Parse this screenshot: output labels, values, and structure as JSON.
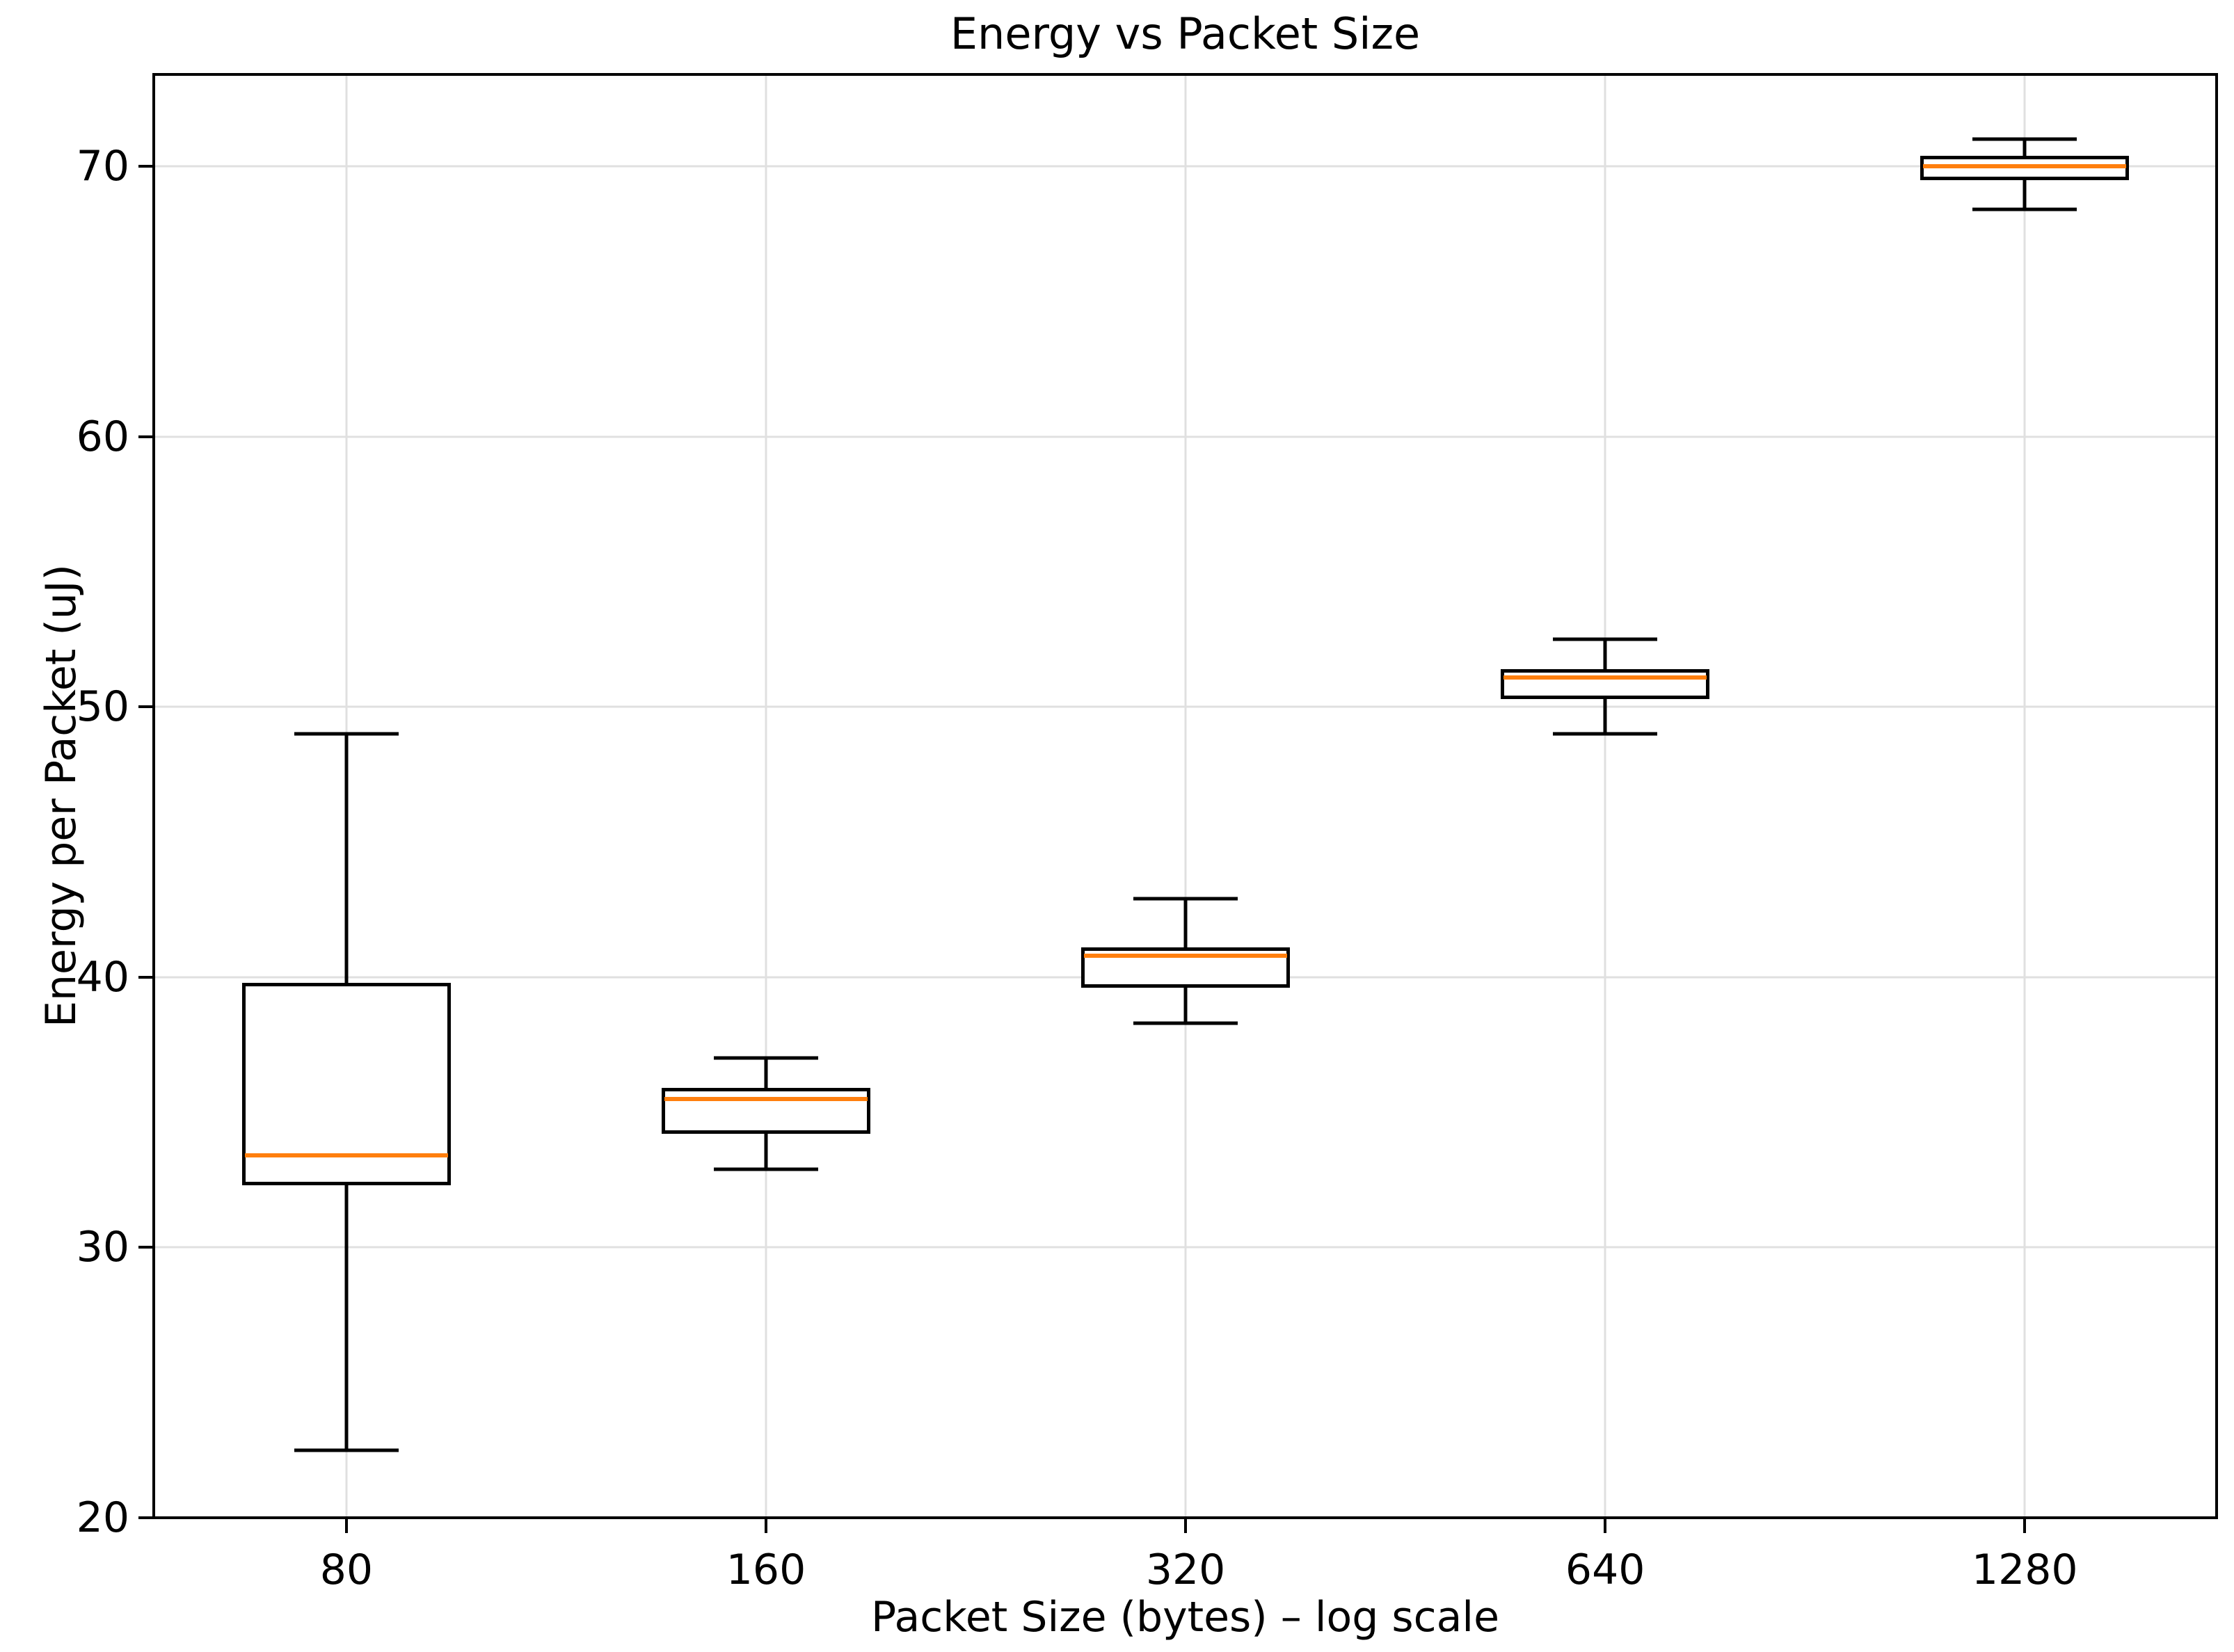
{
  "title": "Energy vs Packet Size",
  "chart_data": {
    "type": "boxplot",
    "title": "Energy vs Packet Size",
    "xlabel": "Packet Size (bytes) – log scale",
    "ylabel": "Energy per Packet (uJ)",
    "x_scale": "log",
    "grid": true,
    "legend": "none",
    "categories": [
      "80",
      "160",
      "320",
      "640",
      "1280"
    ],
    "y_ticks": [
      20,
      30,
      40,
      50,
      60,
      70
    ],
    "ylim": [
      20,
      73.4
    ],
    "series": [
      {
        "category": "80",
        "whisker_low": 22.5,
        "q1": 32.3,
        "median": 33.4,
        "q3": 39.8,
        "whisker_high": 49.0
      },
      {
        "category": "160",
        "whisker_low": 32.9,
        "q1": 34.2,
        "median": 35.5,
        "q3": 35.9,
        "whisker_high": 37.0
      },
      {
        "category": "320",
        "whisker_low": 38.3,
        "q1": 39.6,
        "median": 40.8,
        "q3": 41.1,
        "whisker_high": 42.9
      },
      {
        "category": "640",
        "whisker_low": 49.0,
        "q1": 50.3,
        "median": 51.1,
        "q3": 51.4,
        "whisker_high": 52.5
      },
      {
        "category": "1280",
        "whisker_low": 68.4,
        "q1": 69.5,
        "median": 70.0,
        "q3": 70.4,
        "whisker_high": 71.0
      }
    ],
    "colors": {
      "median": "#ff7f0e",
      "box_edge": "#000000",
      "grid": "#e0e0e0",
      "background": "#ffffff",
      "text": "#000000"
    }
  }
}
